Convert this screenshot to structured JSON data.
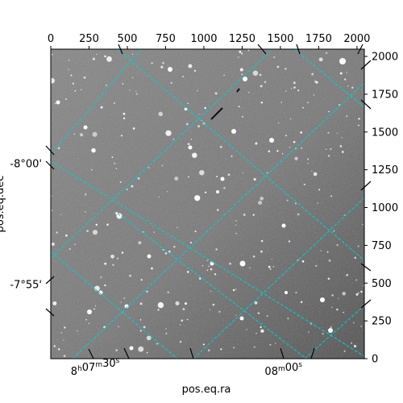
{
  "chart_data": {
    "type": "image",
    "title": "",
    "xlabel": "pos.eq.ra",
    "ylabel": "pos.eq.dec",
    "pixel_axes": {
      "x_range": [
        0,
        2048
      ],
      "y_range": [
        0,
        2048
      ],
      "x_ticks": [
        0,
        250,
        500,
        750,
        1000,
        1250,
        1500,
        1750,
        2000
      ],
      "y_ticks": [
        0,
        250,
        500,
        750,
        1000,
        1250,
        1500,
        1750,
        2000
      ]
    },
    "ra_ticks": [
      {
        "h": "8",
        "m": "07",
        "s": "30",
        "x": 290
      },
      {
        "h": "",
        "m": "08",
        "s": "00",
        "x": 1520
      }
    ],
    "dec_ticks": [
      {
        "label": "-8°00'",
        "y": 1290
      },
      {
        "label": "-7°55'",
        "y": 490
      }
    ],
    "grid": true,
    "grid_color": "#00d0d0",
    "image_background": "#8a8a8a"
  }
}
